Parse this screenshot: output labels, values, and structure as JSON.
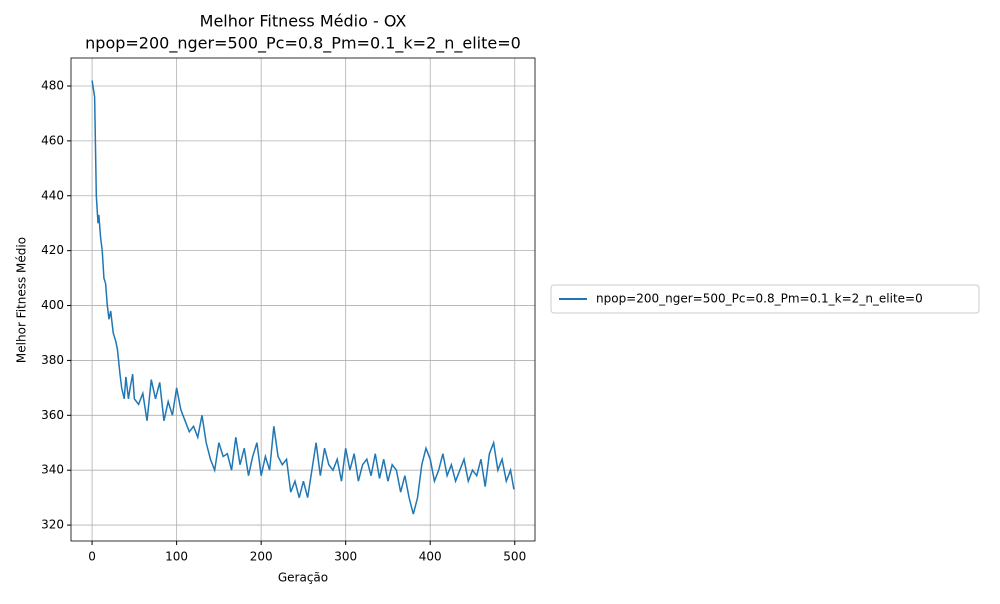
{
  "chart_data": {
    "type": "line",
    "title": "Melhor Fitness Médio - OX",
    "subtitle": "npop=200_nger=500_Pc=0.8_Pm=0.1_k=2_n_elite=0",
    "x_label": "Geração",
    "y_label": "Melhor Fitness Médio",
    "x": [
      0,
      3,
      5,
      7,
      8,
      10,
      12,
      14,
      16,
      18,
      20,
      22,
      25,
      28,
      30,
      33,
      35,
      38,
      40,
      43,
      45,
      48,
      50,
      55,
      60,
      65,
      70,
      75,
      80,
      85,
      90,
      95,
      100,
      105,
      110,
      115,
      120,
      125,
      130,
      135,
      140,
      145,
      150,
      155,
      160,
      165,
      170,
      175,
      180,
      185,
      190,
      195,
      200,
      205,
      210,
      215,
      220,
      225,
      230,
      235,
      240,
      245,
      250,
      255,
      260,
      265,
      270,
      275,
      280,
      285,
      290,
      295,
      300,
      305,
      310,
      315,
      320,
      325,
      330,
      335,
      340,
      345,
      350,
      355,
      360,
      365,
      370,
      375,
      380,
      385,
      390,
      395,
      400,
      405,
      410,
      415,
      420,
      425,
      430,
      435,
      440,
      445,
      450,
      455,
      460,
      465,
      470,
      475,
      480,
      485,
      490,
      495,
      499
    ],
    "series": [
      {
        "name": "npop=200_nger=500_Pc=0.8_Pm=0.1_k=2_n_elite=0",
        "color": "#1f77b4",
        "values": [
          482,
          476,
          440,
          430,
          433,
          425,
          420,
          410,
          408,
          400,
          395,
          398,
          390,
          387,
          384,
          375,
          370,
          366,
          374,
          366,
          370,
          375,
          366,
          364,
          368,
          358,
          373,
          366,
          372,
          358,
          365,
          360,
          370,
          362,
          358,
          354,
          356,
          352,
          360,
          350,
          344,
          340,
          350,
          345,
          346,
          340,
          352,
          342,
          348,
          338,
          345,
          350,
          338,
          345,
          340,
          356,
          345,
          342,
          344,
          332,
          336,
          330,
          336,
          330,
          340,
          350,
          338,
          348,
          342,
          340,
          344,
          336,
          348,
          340,
          346,
          336,
          342,
          344,
          338,
          346,
          337,
          344,
          336,
          342,
          340,
          332,
          338,
          330,
          324,
          330,
          342,
          348,
          344,
          336,
          340,
          346,
          338,
          342,
          336,
          340,
          344,
          336,
          340,
          338,
          344,
          334,
          346,
          350,
          340,
          344,
          336,
          340,
          333
        ]
      }
    ],
    "xlim": [
      -24.95,
      523.95
    ],
    "ylim": [
      314.2,
      490.2
    ],
    "xticks": [
      0,
      100,
      200,
      300,
      400,
      500
    ],
    "yticks": [
      320,
      340,
      360,
      380,
      400,
      420,
      440,
      460,
      480
    ],
    "grid": true,
    "legend": "right"
  }
}
